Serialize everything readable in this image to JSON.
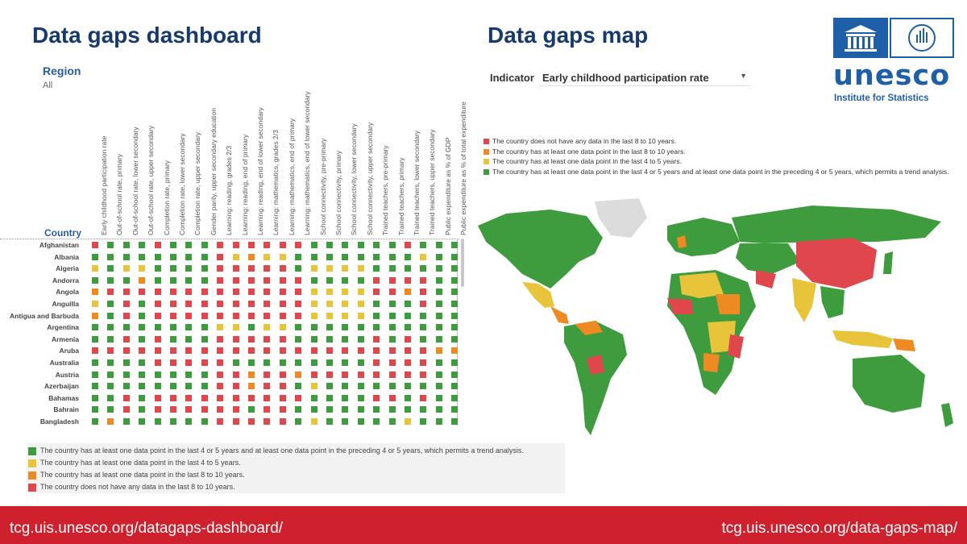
{
  "dashboard": {
    "title": "Data gaps dashboard",
    "region_label": "Region",
    "region_value": "All",
    "country_label": "Country",
    "columns": [
      "Early childhood participation rate",
      "Out-of-school rate, primary",
      "Out-of-school rate, lower secondary",
      "Out-of-school rate, upper secondary",
      "Completion rate, primary",
      "Completion rate, lower secondary",
      "Completion rate, upper secondary",
      "Gender parity, upper secondary education",
      "Learning: reading, grades 2/3",
      "Learning: reading, end of primary",
      "Learning: reading, end of lower secondary",
      "Learning: mathematics, grades 2/3",
      "Learning: mathematics, end of primary",
      "Learning: mathematics, end of lower secondary",
      "School connectivity, pre-primary",
      "School connectivity, primary",
      "School connectivity, lower secondary",
      "School connectivity, upper secondary",
      "Trained teachers, pre-primary",
      "Trained teachers, primary",
      "Trained teachers, lower secondary",
      "Trained teachers, upper secondary",
      "Public expenditure as % of GDP",
      "Public expenditure as % of total expenditure"
    ],
    "status_colors": {
      "G": "#3e9c3e",
      "Y": "#e8c43a",
      "O": "#ee8a22",
      "R": "#e0474c"
    },
    "rows": [
      {
        "country": "Afghanistan",
        "cells": "RGGGRGGGRRRRRRGGGGGGRGGG"
      },
      {
        "country": "Albania",
        "cells": "GGGGGGGGRYOYYGGGGGGGGYGG"
      },
      {
        "country": "Algeria",
        "cells": "YGYYGGGGRRRRRGYYYYGGGGGG"
      },
      {
        "country": "Andorra",
        "cells": "GGGOGGGGRRRRRRGGGGRRRRGG"
      },
      {
        "country": "Angola",
        "cells": "ORRRRRRRRRRRRRYYYYRRORGG"
      },
      {
        "country": "Anguilla",
        "cells": "YGRGRRRRRRRRRRYYYYGGGRGG"
      },
      {
        "country": "Antigua and Barbuda",
        "cells": "OGRGRRRRRRRRRRYYYYGGGGGG"
      },
      {
        "country": "Argentina",
        "cells": "GGGGGGGGYYGYYGGGGGGGGGGG"
      },
      {
        "country": "Armenia",
        "cells": "GGRGRGGGRRRRRGGGGGRGRGGG"
      },
      {
        "country": "Aruba",
        "cells": "RRRRRRRRRRRRRRRRRRRRRROO"
      },
      {
        "country": "Australia",
        "cells": "GGGGRRRRRGGGGGGGGGRRRRGG"
      },
      {
        "country": "Austria",
        "cells": "GGGGGGGGRRORRORRRRRRRRGG"
      },
      {
        "country": "Azerbaijan",
        "cells": "GGGGGGGGRRORRGYGGGGGGGGG"
      },
      {
        "country": "Bahamas",
        "cells": "GGRGRRRRRRRRRRGGGGRRGRGG"
      },
      {
        "country": "Bahrain",
        "cells": "GGRGRRRRRRGRRGGGGGGGGGGG"
      },
      {
        "country": "Bangladesh",
        "cells": "GOGGGGGGRRRRRGYGGGGGYGGG"
      }
    ],
    "legend": [
      {
        "color": "#3e9c3e",
        "text": "The country has at least one data point in the last 4 or 5 years and at least one data point in the preceding 4 or 5 years, which permits a trend analysis."
      },
      {
        "color": "#e8c43a",
        "text": "The country has at least one data point in the last 4 to 5 years."
      },
      {
        "color": "#ee8a22",
        "text": "The country has at least one data point in the last 8 to 10 years."
      },
      {
        "color": "#e0474c",
        "text": "The country does not have any data in the last 8 to 10 years."
      }
    ]
  },
  "map": {
    "title": "Data gaps map",
    "indicator_label": "Indicator",
    "indicator_value": "Early childhood participation rate",
    "legend": [
      {
        "color": "#e0474c",
        "text": "The country does not have any data in the last 8 to 10 years."
      },
      {
        "color": "#ee8a22",
        "text": "The country has at least one data point in the last 8 to 10 years."
      },
      {
        "color": "#e8c43a",
        "text": "The country has at least one data point in the last 4 to 5 years."
      },
      {
        "color": "#3e9c3e",
        "text": "The country has at least one data point in the last 4 or 5 years and at least one data point in the preceding 4 or 5 years, which permits a trend analysis."
      }
    ]
  },
  "logo": {
    "word": "unesco",
    "subtitle": "Institute for Statistics"
  },
  "footer": {
    "left_link": "tcg.uis.unesco.org/datagaps-dashboard/",
    "right_link": "tcg.uis.unesco.org/data-gaps-map/"
  }
}
